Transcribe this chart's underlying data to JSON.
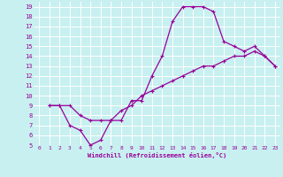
{
  "xlabel": "Windchill (Refroidissement éolien,°C)",
  "bg_color": "#c8f0f0",
  "line_color": "#990099",
  "grid_color": "#ffffff",
  "xlim": [
    -0.5,
    23.5
  ],
  "ylim": [
    5,
    19.5
  ],
  "xticks": [
    0,
    1,
    2,
    3,
    4,
    5,
    6,
    7,
    8,
    9,
    10,
    11,
    12,
    13,
    14,
    15,
    16,
    17,
    18,
    19,
    20,
    21,
    22,
    23
  ],
  "yticks": [
    5,
    6,
    7,
    8,
    9,
    10,
    11,
    12,
    13,
    14,
    15,
    16,
    17,
    18,
    19
  ],
  "line1_x": [
    1,
    2,
    3,
    4,
    5,
    6,
    7,
    8,
    9,
    10,
    11,
    12,
    13,
    14,
    15,
    16,
    17,
    18,
    19,
    20,
    21,
    22,
    23
  ],
  "line1_y": [
    9,
    9,
    7,
    6.5,
    5,
    5.5,
    7.5,
    7.5,
    9.5,
    9.5,
    12,
    14,
    17.5,
    19,
    19,
    19,
    18.5,
    15.5,
    15,
    14.5,
    15,
    14,
    13
  ],
  "line2_x": [
    1,
    2,
    3,
    4,
    5,
    6,
    7,
    8,
    9,
    10,
    11,
    12,
    13,
    14,
    15,
    16,
    17,
    18,
    19,
    20,
    21,
    22,
    23
  ],
  "line2_y": [
    9,
    9,
    9,
    8,
    7.5,
    7.5,
    7.5,
    8.5,
    9,
    10,
    10.5,
    11,
    11.5,
    12,
    12.5,
    13,
    13,
    13.5,
    14,
    14,
    14.5,
    14,
    13
  ]
}
